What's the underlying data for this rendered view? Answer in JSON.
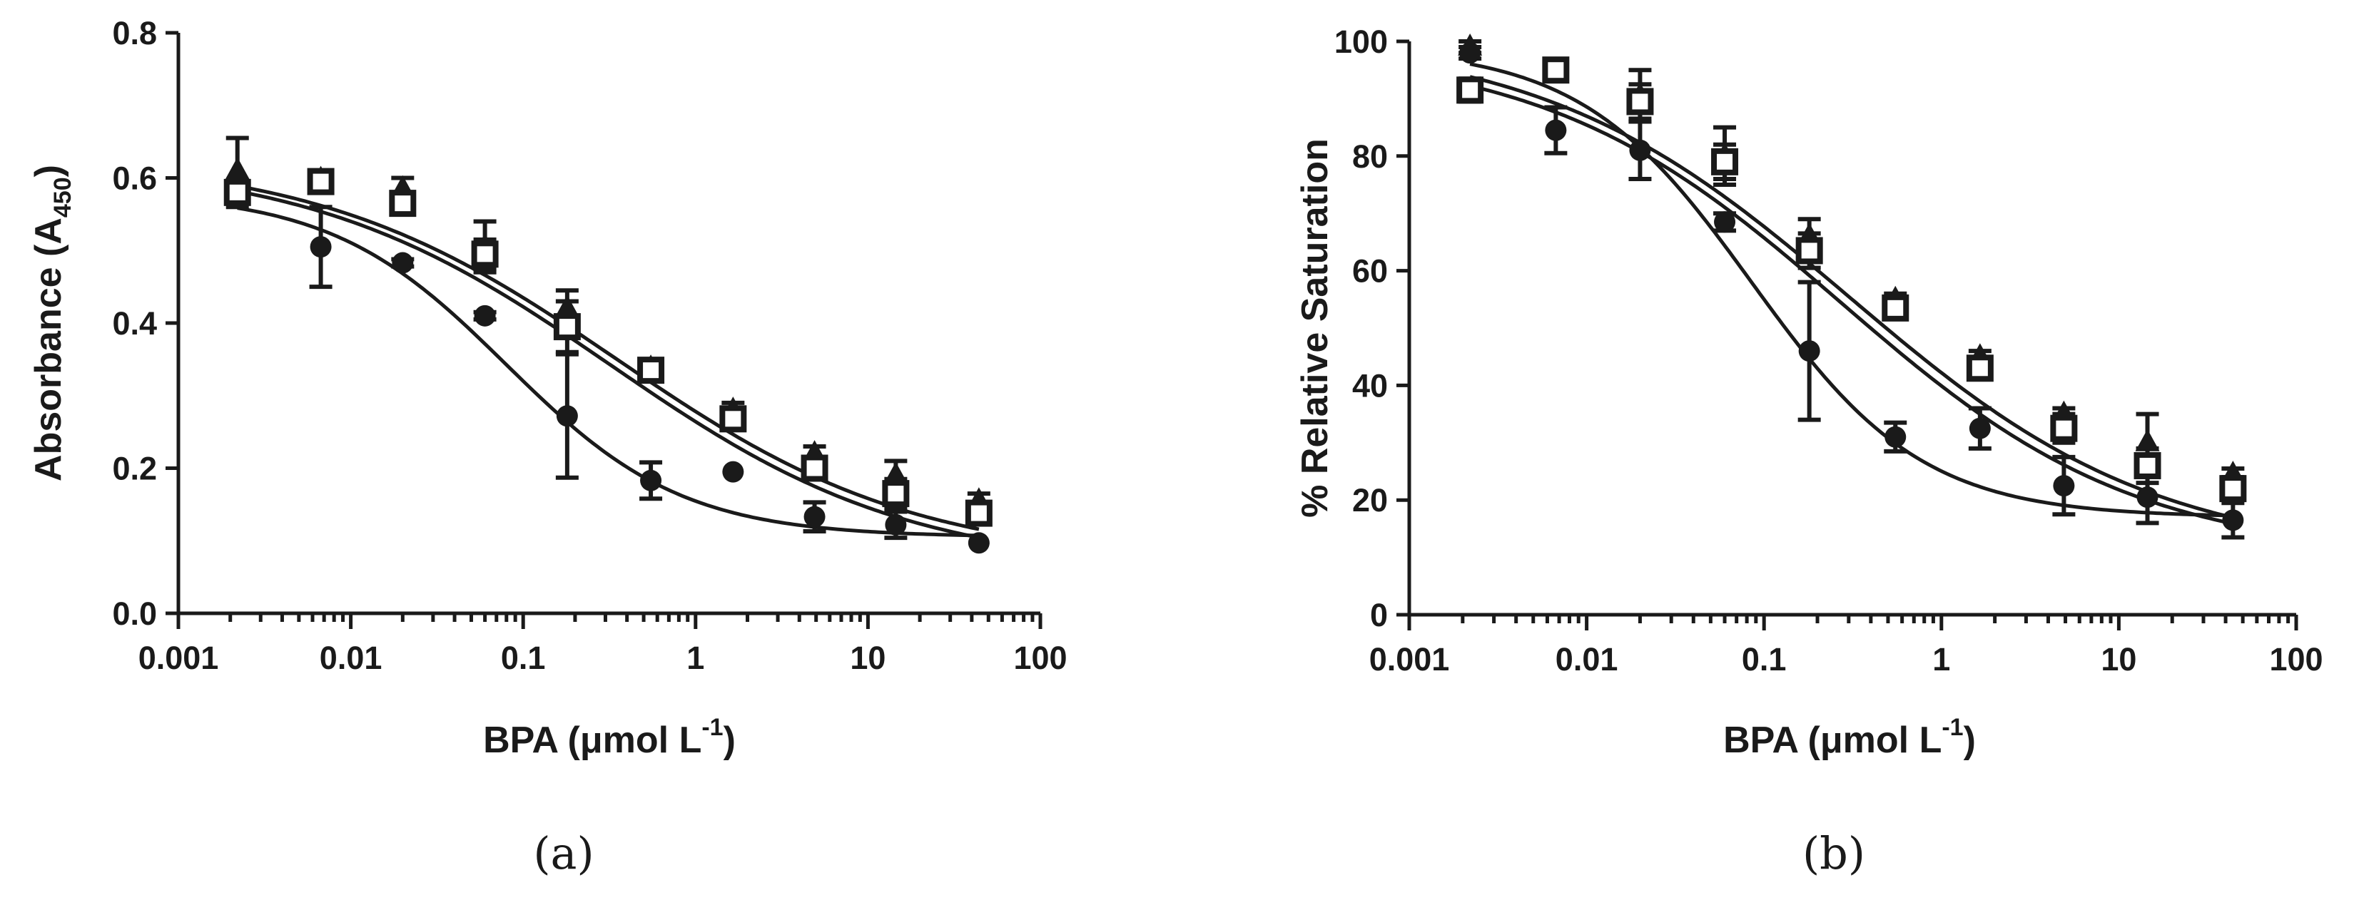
{
  "chart_data": [
    {
      "panel_label": "(a)",
      "type": "scatter",
      "xscale": "log",
      "xlim": [
        0.001,
        100
      ],
      "ylim": [
        0,
        0.8
      ],
      "xticks": [
        "0.001",
        "0.01",
        "0.1",
        "1",
        "10",
        "100"
      ],
      "yticks": [
        "0.0",
        "0.2",
        "0.4",
        "0.6",
        "0.8"
      ],
      "xlabel": {
        "main": "BPA (μmol L",
        "sup": "-1",
        "close": ")"
      },
      "ylabel": {
        "main": "Absorbance (A",
        "sub": "450",
        "close": ")"
      },
      "x": [
        0.0022,
        0.0067,
        0.02,
        0.06,
        0.18,
        0.55,
        1.65,
        4.9,
        14.5,
        44
      ],
      "series": [
        {
          "name": "filled circle",
          "marker": "circle",
          "values": [
            0.575,
            0.505,
            0.483,
            0.41,
            0.272,
            0.183,
            0.195,
            0.133,
            0.122,
            0.097
          ],
          "err": [
            0.015,
            0.055,
            0.005,
            0.005,
            0.085,
            0.025,
            0,
            0.02,
            0.018,
            0
          ],
          "fit": {
            "top": 0.58,
            "bottom": 0.105,
            "ec50": 0.08,
            "hill": 0.85
          }
        },
        {
          "name": "filled triangle",
          "marker": "triangle",
          "values": [
            0.61,
            0.598,
            0.585,
            0.505,
            0.42,
            0.338,
            0.28,
            0.22,
            0.19,
            0.155
          ],
          "err": [
            0.045,
            0.01,
            0.015,
            0.035,
            0.025,
            0.008,
            0.01,
            0.01,
            0.02,
            0.01
          ],
          "fit": {
            "top": 0.63,
            "bottom": 0.07,
            "ec50": 0.35,
            "hill": 0.5
          }
        },
        {
          "name": "open square",
          "marker": "square-open",
          "values": [
            0.58,
            0.595,
            0.565,
            0.495,
            0.395,
            0.335,
            0.268,
            0.2,
            0.165,
            0.138
          ],
          "err": [
            0.015,
            0.01,
            0.015,
            0.02,
            0.035,
            0.008,
            0.012,
            0.015,
            0.02,
            0.01
          ],
          "fit": {
            "top": 0.625,
            "bottom": 0.06,
            "ec50": 0.32,
            "hill": 0.5
          }
        }
      ]
    },
    {
      "panel_label": "(b)",
      "type": "scatter",
      "xscale": "log",
      "xlim": [
        0.001,
        100
      ],
      "ylim": [
        0,
        100
      ],
      "xticks": [
        "0.001",
        "0.01",
        "0.1",
        "1",
        "10",
        "100"
      ],
      "yticks": [
        "0",
        "20",
        "40",
        "60",
        "80",
        "100"
      ],
      "xlabel": {
        "main": "BPA (μmol L",
        "sup": "-1",
        "close": ")"
      },
      "ylabel": {
        "main": "% Relative Saturation"
      },
      "x": [
        0.0022,
        0.0067,
        0.02,
        0.06,
        0.18,
        0.55,
        1.65,
        4.9,
        14.5,
        44
      ],
      "series": [
        {
          "name": "filled circle",
          "marker": "circle",
          "values": [
            98,
            84.5,
            81,
            68.5,
            46,
            31,
            32.5,
            22.5,
            20.5,
            16.5
          ],
          "err": [
            1,
            4,
            5,
            1.5,
            12,
            2.5,
            3.5,
            5,
            4.5,
            3
          ],
          "fit": {
            "top": 99,
            "bottom": 17,
            "ec50": 0.085,
            "hill": 0.9
          }
        },
        {
          "name": "filled triangle",
          "marker": "triangle",
          "values": [
            99,
            95,
            90.5,
            80,
            66,
            55,
            45,
            35,
            30,
            24.5
          ],
          "err": [
            1,
            1.5,
            4.5,
            5,
            3,
            1,
            1,
            1,
            5,
            1
          ],
          "fit": {
            "top": 101,
            "bottom": 10,
            "ec50": 0.3,
            "hill": 0.5
          }
        },
        {
          "name": "open square",
          "marker": "square-open",
          "values": [
            91.5,
            95,
            89.5,
            79,
            63.5,
            53.5,
            43,
            32.5,
            26,
            22
          ],
          "err": [
            2,
            1,
            3,
            3,
            3,
            1.5,
            1.5,
            2.5,
            3,
            2
          ],
          "fit": {
            "top": 99,
            "bottom": 10,
            "ec50": 0.27,
            "hill": 0.52
          }
        }
      ]
    }
  ]
}
